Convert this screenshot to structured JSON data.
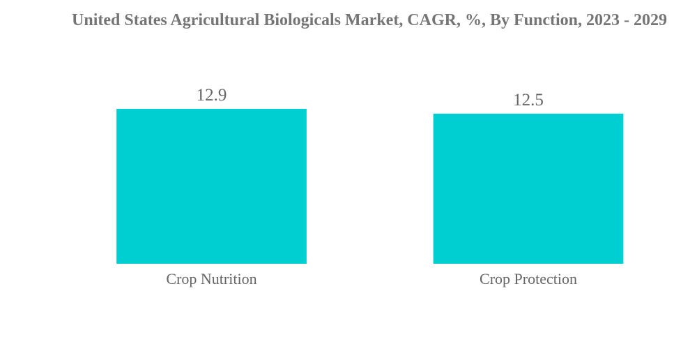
{
  "chart_data": {
    "type": "bar",
    "title": "United States Agricultural Biologicals Market, CAGR, %, By Function, 2023 - 2029",
    "categories": [
      "Crop Nutrition",
      "Crop Protection"
    ],
    "values": [
      12.9,
      12.5
    ],
    "color": "#00cfd1"
  }
}
